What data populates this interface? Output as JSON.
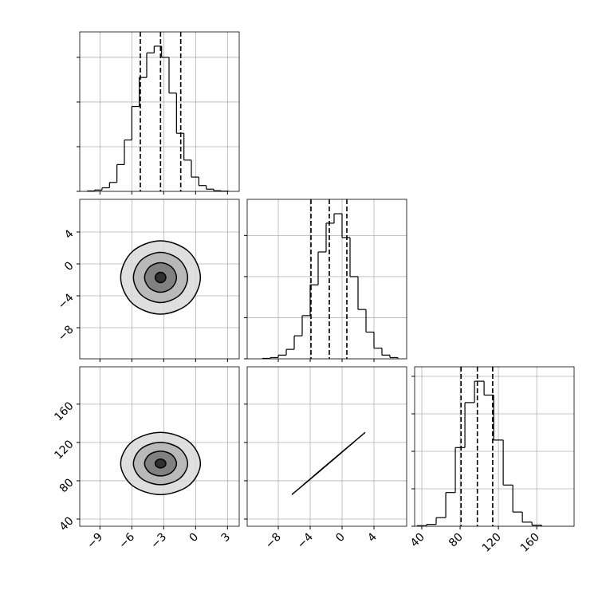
{
  "chart_data": {
    "type": "corner",
    "grid": true,
    "params": [
      {
        "lim": [
          -10.9,
          4.1
        ],
        "ticks": [
          {
            "value": -9,
            "label": "−9"
          },
          {
            "value": -6,
            "label": "−6"
          },
          {
            "value": -3,
            "label": "−3"
          },
          0,
          3
        ]
      },
      {
        "lim": [
          -11.9,
          8.1
        ],
        "ticks": [
          {
            "value": -8,
            "label": "−8"
          },
          {
            "value": -4,
            "label": "−4"
          },
          0,
          4
        ]
      },
      {
        "lim": [
          32.5,
          199
        ],
        "ticks": [
          40,
          80,
          120,
          160
        ]
      }
    ],
    "hist": [
      {
        "bins": [
          -10.2,
          -9.5,
          -8.8,
          -8.1,
          -7.4,
          -6.7,
          -6.0,
          -5.3,
          -4.6,
          -3.9,
          -3.2,
          -2.5,
          -1.8,
          -1.1,
          -0.4,
          0.3,
          1.0,
          1.7,
          2.4,
          3.1
        ],
        "counts": [
          10,
          30,
          80,
          200,
          600,
          1150,
          1900,
          2550,
          3100,
          3250,
          3000,
          2200,
          1300,
          700,
          320,
          130,
          50,
          15,
          5
        ],
        "ylim": [
          0,
          3570
        ],
        "yticks": [
          0,
          1000,
          2000,
          3000
        ],
        "quantiles": [
          -5.2,
          -3.3,
          -1.4
        ]
      },
      {
        "bins": [
          -10,
          -9,
          -8,
          -7,
          -6,
          -5,
          -4,
          -3,
          -2,
          -1,
          0,
          1,
          2,
          3,
          4,
          5,
          6,
          7
        ],
        "counts": [
          10,
          30,
          90,
          230,
          560,
          1050,
          1800,
          2600,
          3300,
          3530,
          2950,
          2000,
          1200,
          650,
          260,
          90,
          30
        ],
        "ylim": [
          0,
          3880
        ],
        "yticks": [
          0,
          1000,
          2000,
          3000
        ],
        "quantiles": [
          -3.9,
          -1.6,
          0.6
        ]
      },
      {
        "bins": [
          35,
          45,
          55,
          65,
          75,
          85,
          95,
          105,
          115,
          125,
          135,
          145,
          155,
          165
        ],
        "counts": [
          15,
          50,
          230,
          900,
          2100,
          3300,
          3870,
          3500,
          2300,
          1100,
          380,
          110,
          30
        ],
        "ylim": [
          0,
          4255
        ],
        "yticks": [
          0,
          1000,
          2000,
          3000,
          4000
        ],
        "quantiles": [
          81,
          98,
          114
        ]
      }
    ],
    "pairs": [
      {
        "contours": [
          {
            "x": [
              0.45,
              -0.65,
              -3.3,
              -5.95,
              -7.05,
              -5.95,
              -3.3,
              -0.65
            ],
            "y": [
              -1.7,
              1.55,
              2.9,
              1.55,
              -1.7,
              -4.95,
              -6.3,
              -4.95
            ]
          },
          {
            "x": [
              -0.75,
              -1.5,
              -3.3,
              -5.1,
              -5.85,
              -5.1,
              -3.3,
              -1.5
            ],
            "y": [
              -1.7,
              0.5,
              1.45,
              0.5,
              -1.7,
              -3.9,
              -4.85,
              -3.9
            ]
          },
          {
            "x": [
              -1.8,
              -2.25,
              -3.3,
              -4.35,
              -4.8,
              -4.35,
              -3.3,
              -2.25
            ],
            "y": [
              -1.7,
              -0.4,
              0.15,
              -0.4,
              -1.7,
              -3.0,
              -3.55,
              -3.0
            ]
          },
          {
            "x": [
              -2.8,
              -2.95,
              -3.3,
              -3.65,
              -3.8,
              -3.65,
              -3.3,
              -2.95
            ],
            "y": [
              -1.7,
              -1.25,
              -1.05,
              -1.25,
              -1.7,
              -2.15,
              -2.35,
              -2.15
            ]
          }
        ]
      },
      {
        "contours": [
          {
            "x": [
              0.45,
              -0.65,
              -3.3,
              -5.95,
              -7.05,
              -5.95,
              -3.3,
              -0.65
            ],
            "y": [
              98,
              121,
              130.5,
              121,
              98,
              75,
              65.5,
              75
            ]
          },
          {
            "x": [
              -0.75,
              -1.5,
              -3.3,
              -5.1,
              -5.85,
              -5.1,
              -3.3,
              -1.5
            ],
            "y": [
              98,
              113.6,
              120.1,
              113.6,
              98,
              82.4,
              75.9,
              82.4
            ]
          },
          {
            "x": [
              -1.8,
              -2.25,
              -3.3,
              -4.35,
              -4.8,
              -4.35,
              -3.3,
              -2.25
            ],
            "y": [
              98,
              107.2,
              111,
              107.2,
              98,
              88.8,
              85,
              88.8
            ]
          },
          {
            "x": [
              -2.8,
              -2.95,
              -3.3,
              -3.65,
              -3.8,
              -3.65,
              -3.3,
              -2.95
            ],
            "y": [
              98,
              101.2,
              102.6,
              101.2,
              98,
              94.8,
              93.4,
              94.8
            ]
          }
        ]
      },
      {
        "contours": [
          {
            "x": [
              -1.7,
              1.55,
              2.9,
              1.55,
              -1.7,
              -4.95,
              -6.3,
              -4.95
            ],
            "y": [
              98,
              121,
              130.5,
              121,
              98,
              75,
              65.5,
              75
            ]
          },
          {
            "x": [
              -1.7,
              0.5,
              1.45,
              0.5,
              -1.7,
              -3.9,
              -4.85,
              -3.9
            ],
            "y": [
              98,
              113.6,
              120.1,
              113.6,
              98,
              82.4,
              75.9,
              82.4
            ]
          },
          {
            "x": [
              -1.7,
              -0.4,
              0.15,
              -0.4,
              -1.7,
              -3.0,
              -3.55,
              -3.0
            ],
            "y": [
              98,
              107.2,
              111,
              107.2,
              98,
              88.8,
              85,
              88.8
            ]
          },
          {
            "x": [
              -1.7,
              -1.25,
              -1.05,
              -1.25,
              -1.7,
              -2.15,
              -2.35,
              -2.15
            ],
            "y": [
              98,
              101.2,
              102.6,
              101.2,
              98,
              94.8,
              93.4,
              94.8
            ]
          }
        ]
      }
    ]
  }
}
